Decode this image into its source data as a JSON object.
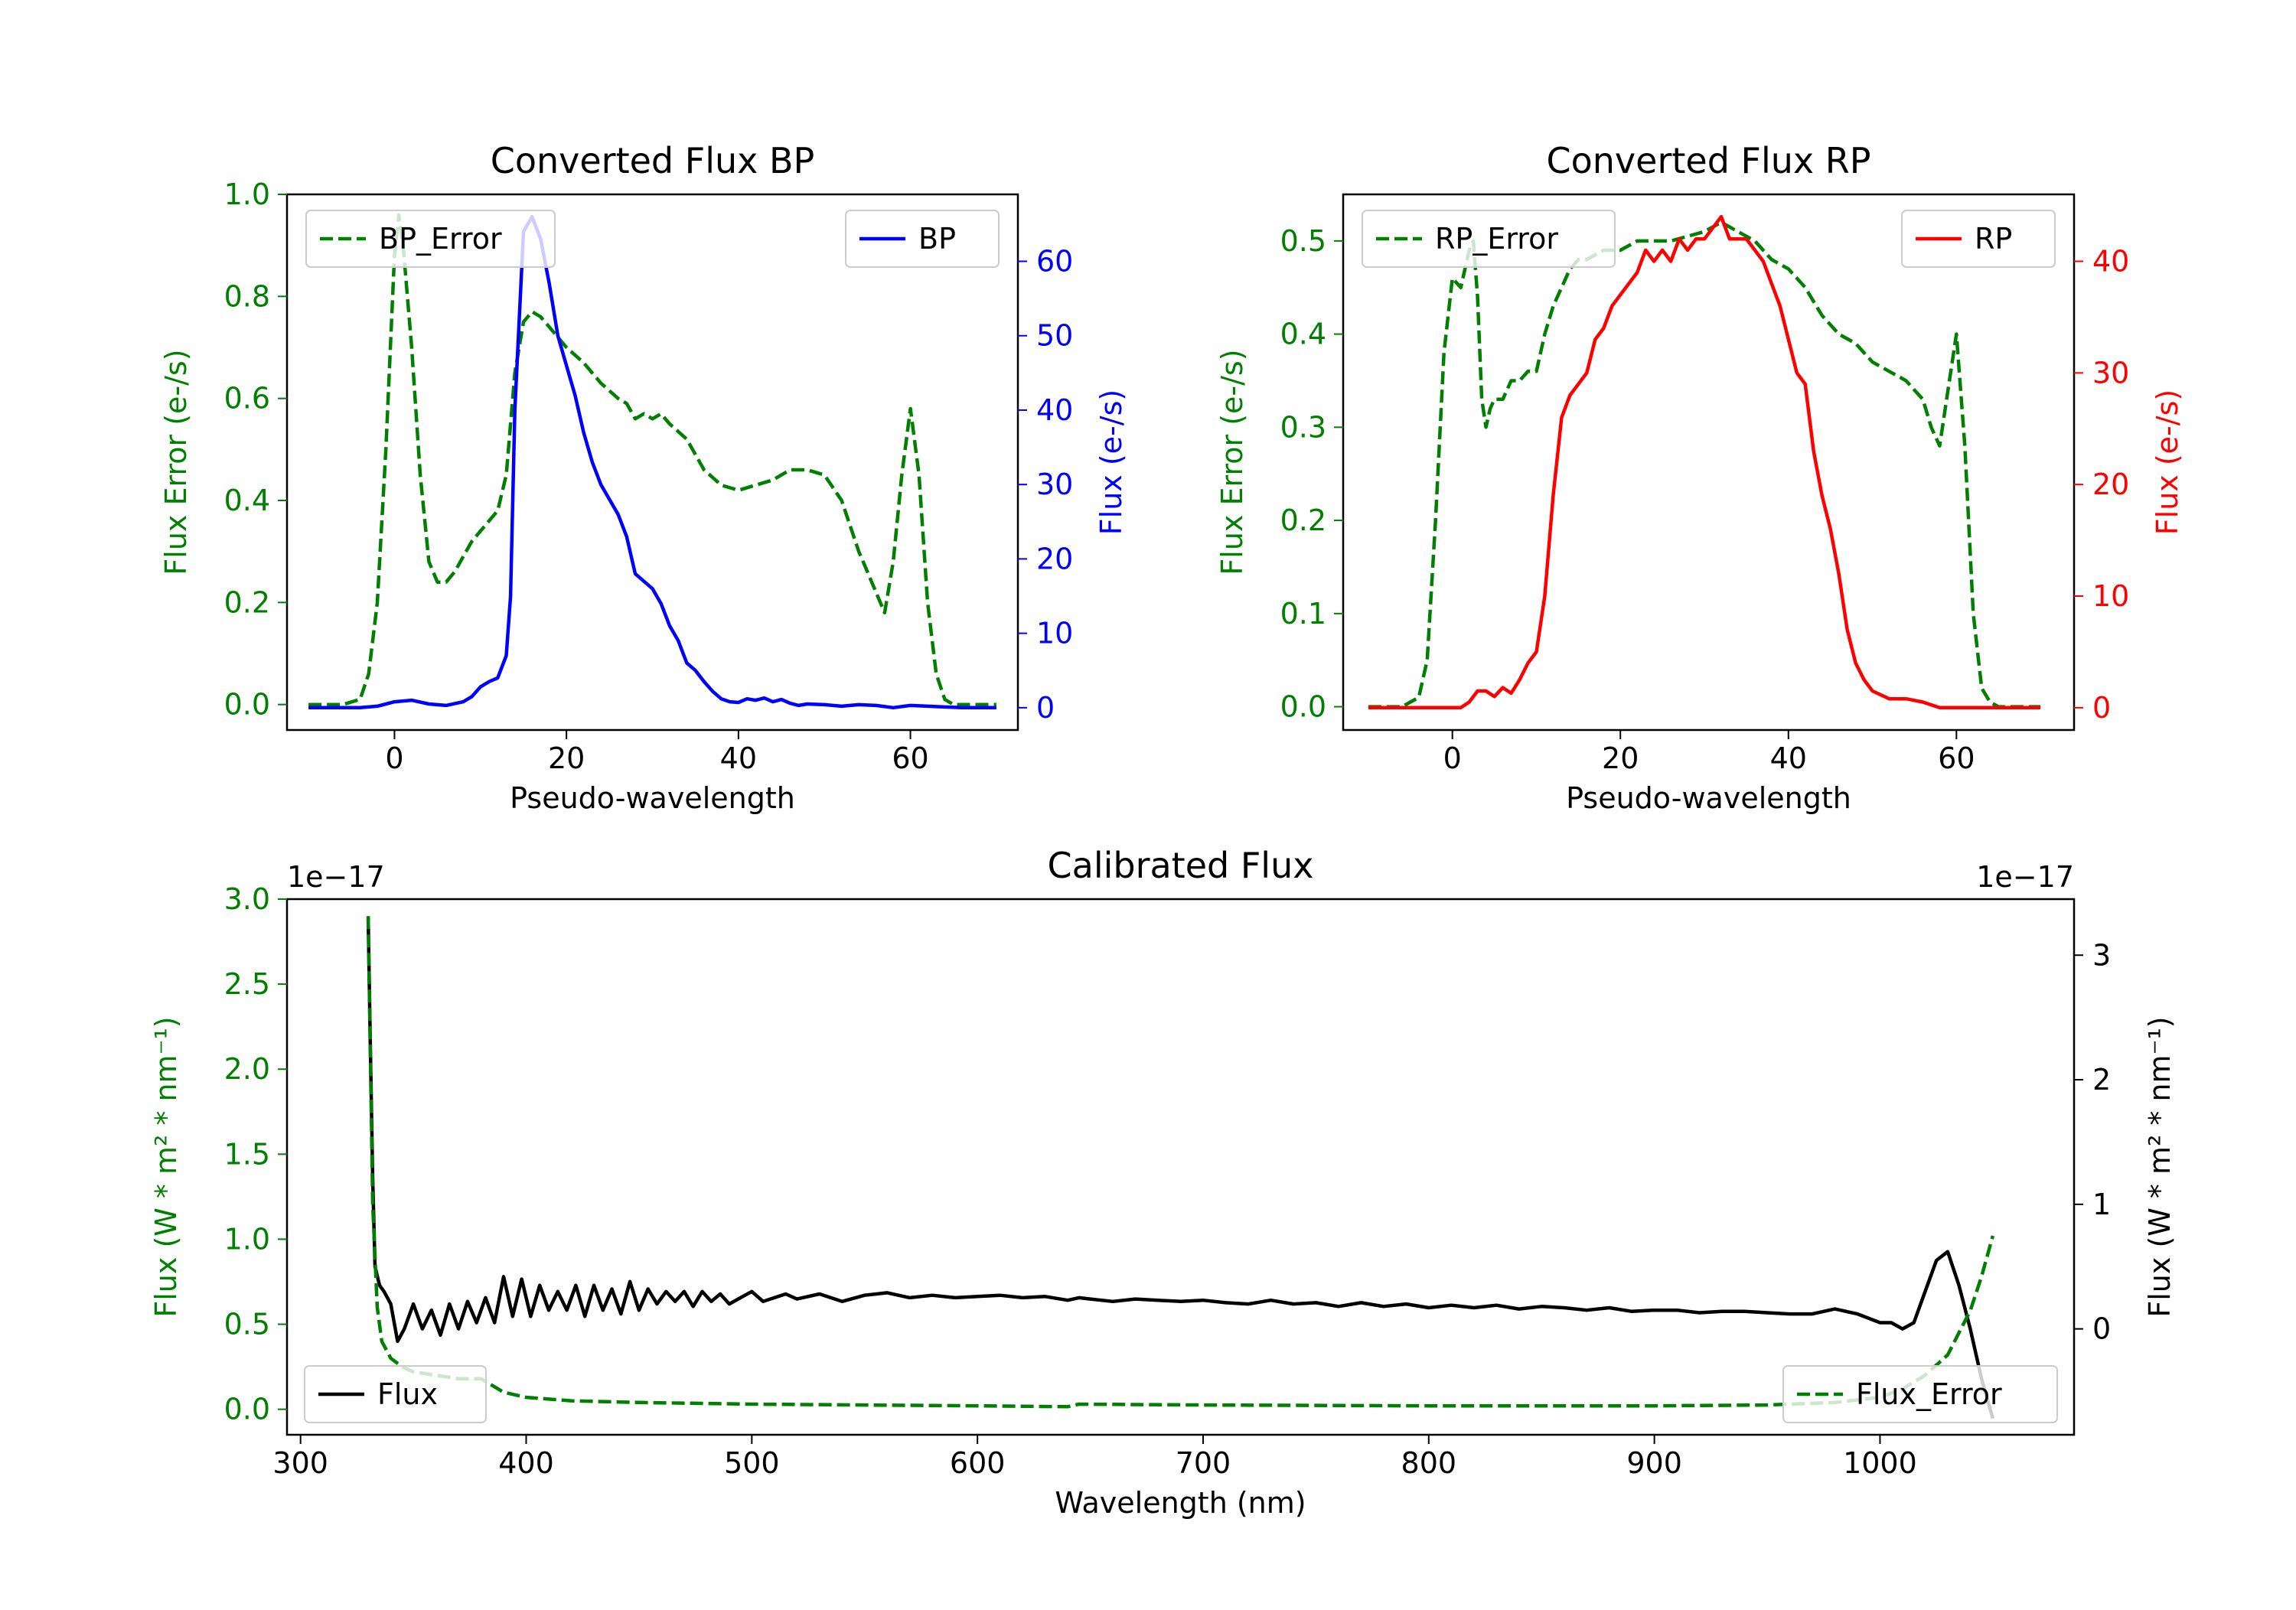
{
  "colors": {
    "bp": "#0000ff",
    "rp": "#ff0000",
    "error": "#008000",
    "flux": "#000000",
    "axis": "#000000",
    "legend_border": "#cccccc"
  },
  "chart_data": [
    {
      "id": "bp",
      "type": "line",
      "title": "Converted Flux BP",
      "xlabel": "Pseudo-wavelength",
      "ylabel_left": "Flux Error (e-/s)",
      "ylabel_right": "Flux (e-/s)",
      "xlim": [
        -12.5,
        72.5
      ],
      "ylim_left": [
        -0.05,
        1.0
      ],
      "ylim_right": [
        -3,
        69
      ],
      "xticks": [
        0,
        20,
        40,
        60
      ],
      "xtick_labels": [
        "0",
        "20",
        "40",
        "60"
      ],
      "yticks_left": [
        0.0,
        0.2,
        0.4,
        0.6,
        0.8,
        1.0
      ],
      "ytick_labels_left": [
        "0.0",
        "0.2",
        "0.4",
        "0.6",
        "0.8",
        "1.0"
      ],
      "yticks_right": [
        0,
        10,
        20,
        30,
        40,
        50,
        60
      ],
      "ytick_labels_right": [
        "0",
        "10",
        "20",
        "30",
        "40",
        "50",
        "60"
      ],
      "legend_left": "BP_Error",
      "legend_right": "BP",
      "series": [
        {
          "name": "BP_Error",
          "axis": "left",
          "color": "#008000",
          "dash": true,
          "x": [
            -10,
            -6,
            -4,
            -3,
            -2,
            -1,
            0,
            0.5,
            1,
            2,
            3,
            4,
            5,
            6,
            7,
            8,
            9,
            10,
            11,
            12,
            13,
            14,
            15,
            16,
            17,
            18,
            19,
            20,
            22,
            24,
            26,
            27,
            28,
            29,
            30,
            31,
            32,
            34,
            36,
            38,
            40,
            42,
            44,
            46,
            48,
            50,
            52,
            54,
            55,
            56,
            57,
            58,
            59,
            60,
            61,
            62,
            63,
            64,
            65,
            70
          ],
          "values": [
            0,
            0,
            0.01,
            0.06,
            0.2,
            0.5,
            0.88,
            0.96,
            0.9,
            0.7,
            0.45,
            0.28,
            0.24,
            0.24,
            0.26,
            0.29,
            0.32,
            0.34,
            0.36,
            0.38,
            0.45,
            0.65,
            0.75,
            0.77,
            0.76,
            0.74,
            0.72,
            0.7,
            0.67,
            0.63,
            0.6,
            0.59,
            0.56,
            0.57,
            0.56,
            0.57,
            0.55,
            0.52,
            0.46,
            0.43,
            0.42,
            0.43,
            0.44,
            0.46,
            0.46,
            0.45,
            0.4,
            0.3,
            0.26,
            0.22,
            0.18,
            0.28,
            0.45,
            0.58,
            0.45,
            0.2,
            0.06,
            0.01,
            0,
            0
          ]
        },
        {
          "name": "BP",
          "axis": "right",
          "color": "#0000ff",
          "dash": false,
          "x": [
            -10,
            -4,
            -2,
            0,
            2,
            4,
            6,
            8,
            9,
            10,
            11,
            12,
            13,
            13.5,
            14,
            15,
            16,
            17,
            18,
            19,
            20,
            21,
            22,
            23,
            24,
            25,
            26,
            27,
            28,
            29,
            30,
            31,
            32,
            33,
            34,
            35,
            36,
            37,
            38,
            39,
            40,
            41,
            42,
            43,
            44,
            45,
            46,
            47,
            48,
            50,
            52,
            54,
            56,
            58,
            60,
            62,
            64,
            66,
            70
          ],
          "values": [
            0,
            0,
            0.2,
            0.8,
            1,
            0.5,
            0.3,
            0.8,
            1.5,
            2.8,
            3.5,
            4,
            7,
            15,
            40,
            64,
            66,
            63,
            57,
            50,
            46,
            42,
            37,
            33,
            30,
            28,
            26,
            23,
            18,
            17,
            16,
            14,
            11,
            9,
            6,
            5,
            3.5,
            2.2,
            1.2,
            0.8,
            0.7,
            1.2,
            1,
            1.3,
            0.8,
            1.1,
            0.6,
            0.3,
            0.5,
            0.4,
            0.2,
            0.4,
            0.3,
            0,
            0.3,
            0.2,
            0.1,
            0,
            0
          ]
        }
      ]
    },
    {
      "id": "rp",
      "type": "line",
      "title": "Converted Flux RP",
      "xlabel": "Pseudo-wavelength",
      "ylabel_left": "Flux Error (e-/s)",
      "ylabel_right": "Flux (e-/s)",
      "xlim": [
        -13,
        74
      ],
      "ylim_left": [
        -0.025,
        0.55
      ],
      "ylim_right": [
        -2,
        46
      ],
      "xticks": [
        0,
        20,
        40,
        60
      ],
      "xtick_labels": [
        "0",
        "20",
        "40",
        "60"
      ],
      "yticks_left": [
        0.0,
        0.1,
        0.2,
        0.3,
        0.4,
        0.5
      ],
      "ytick_labels_left": [
        "0.0",
        "0.1",
        "0.2",
        "0.3",
        "0.4",
        "0.5"
      ],
      "yticks_right": [
        0,
        10,
        20,
        30,
        40
      ],
      "ytick_labels_right": [
        "0",
        "10",
        "20",
        "30",
        "40"
      ],
      "legend_left": "RP_Error",
      "legend_right": "RP",
      "series": [
        {
          "name": "RP_Error",
          "axis": "left",
          "color": "#008000",
          "dash": true,
          "x": [
            -10,
            -6,
            -4,
            -3,
            -2,
            -1,
            0,
            1,
            2,
            2.5,
            3,
            3.5,
            4,
            4.5,
            5,
            6,
            7,
            8,
            9,
            10,
            11,
            12,
            13,
            14,
            15,
            16,
            18,
            20,
            22,
            24,
            26,
            28,
            30,
            32,
            34,
            36,
            38,
            40,
            42,
            44,
            46,
            48,
            50,
            52,
            54,
            55,
            56,
            57,
            58,
            59,
            60,
            61,
            62,
            63,
            64,
            65,
            70
          ],
          "values": [
            0,
            0,
            0.01,
            0.05,
            0.2,
            0.38,
            0.46,
            0.45,
            0.49,
            0.5,
            0.44,
            0.33,
            0.3,
            0.32,
            0.33,
            0.33,
            0.35,
            0.35,
            0.36,
            0.36,
            0.4,
            0.43,
            0.45,
            0.47,
            0.48,
            0.48,
            0.49,
            0.49,
            0.5,
            0.5,
            0.5,
            0.505,
            0.51,
            0.52,
            0.51,
            0.5,
            0.48,
            0.47,
            0.45,
            0.42,
            0.4,
            0.39,
            0.37,
            0.36,
            0.35,
            0.34,
            0.33,
            0.3,
            0.28,
            0.34,
            0.4,
            0.28,
            0.1,
            0.02,
            0.005,
            0,
            0
          ]
        },
        {
          "name": "RP",
          "axis": "right",
          "color": "#ff0000",
          "dash": false,
          "x": [
            -10,
            -4,
            -2,
            0,
            1,
            2,
            3,
            4,
            5,
            6,
            7,
            8,
            9,
            10,
            11,
            12,
            13,
            14,
            15,
            16,
            17,
            18,
            19,
            20,
            21,
            22,
            23,
            24,
            25,
            26,
            27,
            28,
            29,
            30,
            31,
            32,
            33,
            34,
            35,
            36,
            37,
            38,
            39,
            40,
            41,
            42,
            43,
            44,
            45,
            46,
            47,
            48,
            49,
            50,
            52,
            54,
            56,
            58,
            60,
            62,
            70
          ],
          "values": [
            0,
            0,
            0,
            0,
            0,
            0.5,
            1.5,
            1.5,
            1,
            1.8,
            1.3,
            2.5,
            4,
            5,
            10,
            19,
            26,
            28,
            29,
            30,
            33,
            34,
            36,
            37,
            38,
            39,
            41,
            40,
            41,
            40,
            42,
            41,
            42,
            42,
            43,
            44,
            42,
            42,
            42,
            41,
            40,
            38,
            36,
            33,
            30,
            29,
            23,
            19,
            16,
            12,
            7,
            4,
            2.5,
            1.5,
            0.8,
            0.8,
            0.5,
            0,
            0,
            0,
            0
          ]
        }
      ]
    },
    {
      "id": "cal",
      "type": "line",
      "title": "Calibrated Flux",
      "xlabel": "Wavelength (nm)",
      "ylabel_left": "Flux (W * m² * nm⁻¹)",
      "ylabel_right": "Flux (W * m² * nm⁻¹)",
      "offset_left": "1e−17",
      "offset_right": "1e−17",
      "xlim": [
        294,
        1086
      ],
      "ylim_left": [
        -0.15,
        3.0
      ],
      "ylim_right": [
        -0.85,
        3.45
      ],
      "xticks": [
        300,
        400,
        500,
        600,
        700,
        800,
        900,
        1000
      ],
      "xtick_labels": [
        "300",
        "400",
        "500",
        "600",
        "700",
        "800",
        "900",
        "1000"
      ],
      "yticks_left": [
        0.0,
        0.5,
        1.0,
        1.5,
        2.0,
        2.5,
        3.0
      ],
      "ytick_labels_left": [
        "0.0",
        "0.5",
        "1.0",
        "1.5",
        "2.0",
        "2.5",
        "3.0"
      ],
      "yticks_right": [
        0,
        1,
        2,
        3
      ],
      "ytick_labels_right": [
        "0",
        "1",
        "2",
        "3"
      ],
      "legend_left": "Flux",
      "legend_right": "Flux_Error",
      "series": [
        {
          "name": "Flux",
          "axis": "right",
          "color": "#000000",
          "dash": false,
          "x": [
            330,
            331,
            332,
            333,
            335,
            337,
            340,
            343,
            346,
            350,
            354,
            358,
            362,
            366,
            370,
            374,
            378,
            382,
            386,
            390,
            394,
            398,
            402,
            406,
            410,
            414,
            418,
            422,
            426,
            430,
            434,
            438,
            442,
            446,
            450,
            454,
            458,
            462,
            466,
            470,
            474,
            478,
            482,
            486,
            490,
            495,
            500,
            505,
            510,
            515,
            520,
            530,
            540,
            550,
            560,
            570,
            580,
            590,
            600,
            610,
            620,
            630,
            640,
            645,
            650,
            660,
            670,
            680,
            690,
            700,
            710,
            720,
            730,
            740,
            750,
            760,
            770,
            780,
            790,
            800,
            810,
            820,
            830,
            840,
            850,
            860,
            870,
            880,
            890,
            900,
            910,
            920,
            930,
            940,
            950,
            960,
            970,
            980,
            990,
            1000,
            1005,
            1010,
            1015,
            1020,
            1025,
            1030,
            1035,
            1040,
            1045,
            1050
          ],
          "values": [
            3.3,
            2.2,
            1.2,
            0.5,
            0.35,
            0.3,
            0.2,
            -0.1,
            0,
            0.2,
            0,
            0.15,
            -0.05,
            0.2,
            0,
            0.22,
            0.05,
            0.25,
            0.05,
            0.42,
            0.1,
            0.4,
            0.1,
            0.35,
            0.15,
            0.3,
            0.15,
            0.35,
            0.1,
            0.35,
            0.15,
            0.32,
            0.12,
            0.38,
            0.15,
            0.32,
            0.2,
            0.3,
            0.22,
            0.3,
            0.18,
            0.3,
            0.22,
            0.28,
            0.2,
            0.25,
            0.3,
            0.22,
            0.25,
            0.28,
            0.24,
            0.28,
            0.22,
            0.27,
            0.29,
            0.25,
            0.27,
            0.25,
            0.26,
            0.27,
            0.25,
            0.26,
            0.23,
            0.25,
            0.24,
            0.22,
            0.24,
            0.23,
            0.22,
            0.23,
            0.21,
            0.2,
            0.23,
            0.2,
            0.21,
            0.18,
            0.21,
            0.18,
            0.2,
            0.17,
            0.19,
            0.17,
            0.19,
            0.16,
            0.18,
            0.17,
            0.15,
            0.17,
            0.14,
            0.15,
            0.15,
            0.13,
            0.14,
            0.14,
            0.13,
            0.12,
            0.12,
            0.16,
            0.12,
            0.05,
            0.05,
            0.0,
            0.05,
            0.3,
            0.55,
            0.62,
            0.35,
            0.0,
            -0.4,
            -0.72
          ]
        },
        {
          "name": "Flux_Error",
          "axis": "left",
          "color": "#008000",
          "dash": true,
          "x": [
            330,
            332,
            334,
            336,
            340,
            345,
            350,
            360,
            370,
            380,
            385,
            390,
            400,
            420,
            450,
            500,
            550,
            600,
            640,
            645,
            700,
            800,
            900,
            950,
            980,
            1000,
            1010,
            1020,
            1030,
            1035,
            1040,
            1045,
            1050
          ],
          "values": [
            2.9,
            1.2,
            0.6,
            0.4,
            0.3,
            0.25,
            0.22,
            0.2,
            0.18,
            0.18,
            0.14,
            0.1,
            0.07,
            0.05,
            0.04,
            0.03,
            0.025,
            0.02,
            0.015,
            0.03,
            0.025,
            0.02,
            0.02,
            0.025,
            0.04,
            0.07,
            0.12,
            0.2,
            0.32,
            0.45,
            0.58,
            0.78,
            1.02
          ]
        }
      ]
    }
  ]
}
